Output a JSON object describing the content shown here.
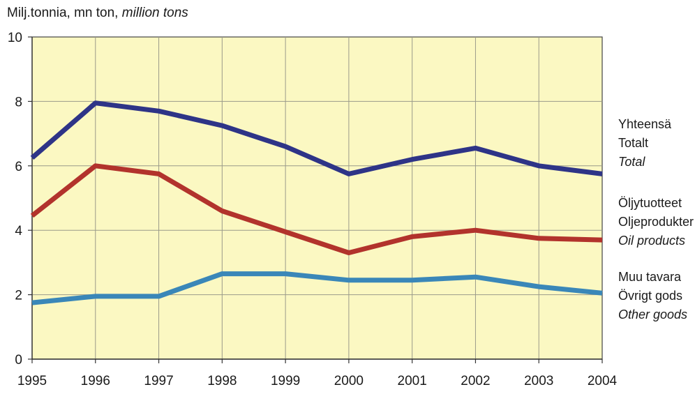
{
  "chart_data": {
    "type": "line",
    "unit_label": {
      "fi": "Milj.tonnia, mn ton, ",
      "en": "million tons"
    },
    "x": [
      "1995",
      "1996",
      "1997",
      "1998",
      "1999",
      "2000",
      "2001",
      "2002",
      "2003",
      "2004"
    ],
    "ylim": [
      0,
      10
    ],
    "yticks": [
      "0",
      "2",
      "4",
      "6",
      "8",
      "10"
    ],
    "grid": true,
    "legend_placement": "right",
    "plot_background": "#fbf8c2",
    "series": [
      {
        "name": "Total",
        "legend": [
          "Yhteensä",
          "Totalt",
          "Total"
        ],
        "color": "#2e3487",
        "values": [
          6.25,
          7.95,
          7.7,
          7.25,
          6.6,
          5.75,
          6.2,
          6.55,
          6.0,
          5.75
        ]
      },
      {
        "name": "Oil products",
        "legend": [
          "Öljytuotteet",
          "Oljeprodukter",
          "Oil products"
        ],
        "color": "#b2332c",
        "values": [
          4.45,
          6.0,
          5.75,
          4.6,
          3.95,
          3.3,
          3.8,
          4.0,
          3.75,
          3.7
        ]
      },
      {
        "name": "Other goods",
        "legend": [
          "Muu tavara",
          "Övrigt gods",
          "Other goods"
        ],
        "color": "#3a87b8",
        "values": [
          1.75,
          1.95,
          1.95,
          2.65,
          2.65,
          2.45,
          2.45,
          2.55,
          2.25,
          2.05
        ]
      }
    ]
  }
}
